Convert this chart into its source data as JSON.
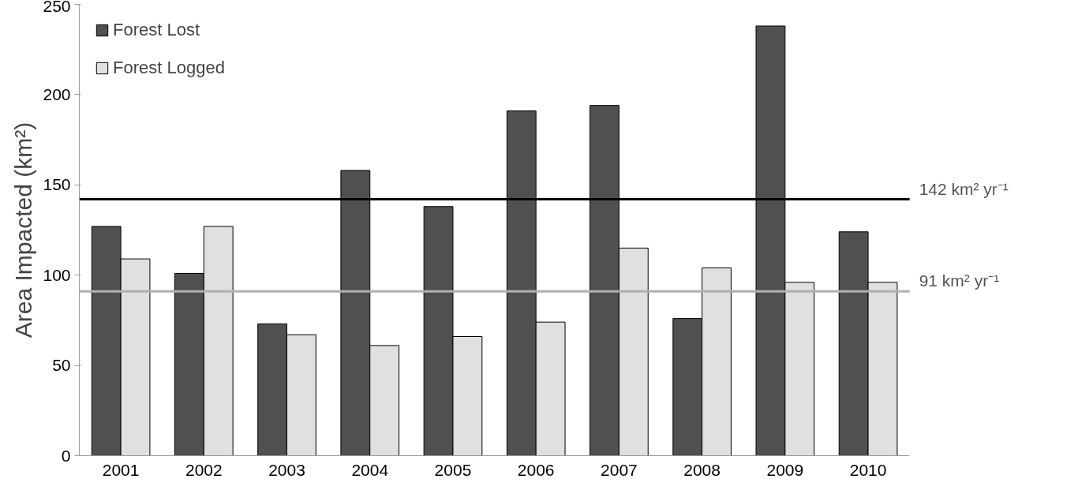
{
  "chart_data": {
    "type": "bar",
    "ylabel": "Area Impacted (km²)",
    "categories": [
      "2001",
      "2002",
      "2003",
      "2004",
      "2005",
      "2006",
      "2007",
      "2008",
      "2009",
      "2010"
    ],
    "series": [
      {
        "name": "Forest Lost",
        "color": "#505050",
        "values": [
          127,
          101,
          73,
          158,
          138,
          191,
          194,
          76,
          238,
          124
        ]
      },
      {
        "name": "Forest Logged",
        "color": "#e0e0e0",
        "values": [
          109,
          127,
          67,
          61,
          66,
          74,
          115,
          104,
          96,
          96
        ]
      }
    ],
    "ylim": [
      0,
      250
    ],
    "yticks": [
      0,
      50,
      100,
      150,
      200,
      250
    ],
    "grid": false,
    "legend": "top left",
    "ref_lines": [
      {
        "axis": "y",
        "value": 142,
        "label": "142 km² yr⁻¹",
        "color": "#000000"
      },
      {
        "axis": "y",
        "value": 91,
        "label": "91 km² yr⁻¹",
        "color": "#b0b0b0"
      }
    ]
  }
}
